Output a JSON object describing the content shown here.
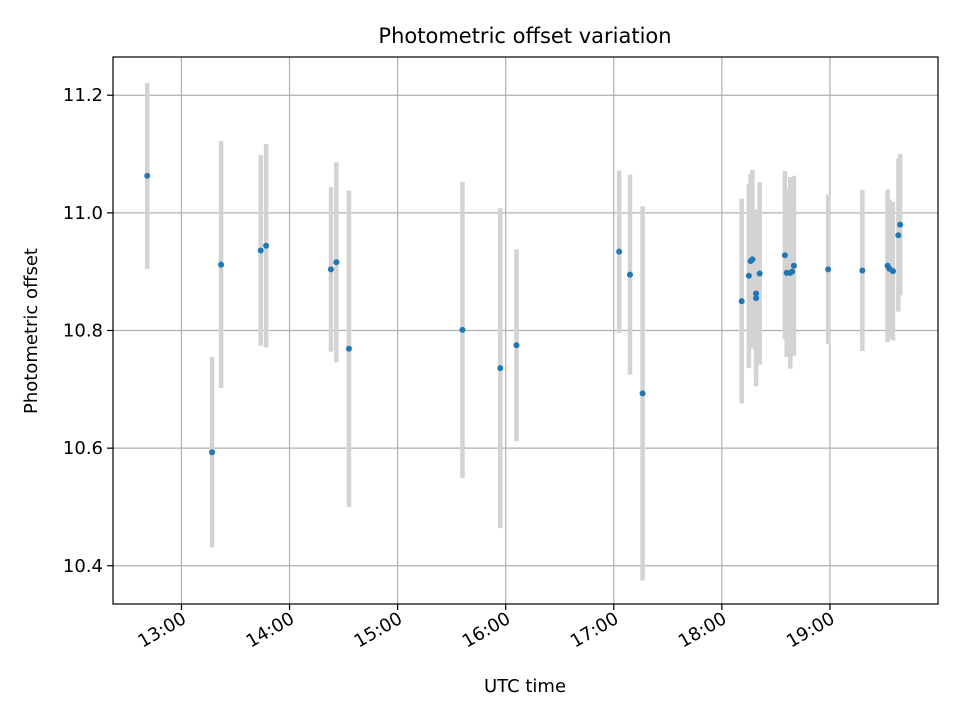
{
  "chart_data": {
    "type": "scatter",
    "title": "Photometric offset variation",
    "xlabel": "UTC time",
    "ylabel": "Photometric offset",
    "x_ticks": [
      "13:00",
      "14:00",
      "15:00",
      "16:00",
      "17:00",
      "18:00",
      "19:00"
    ],
    "y_ticks": [
      "10.4",
      "10.6",
      "10.8",
      "11.0",
      "11.2"
    ],
    "xlim": [
      "12:22",
      "20:00"
    ],
    "ylim": [
      10.335,
      11.265
    ],
    "grid": true,
    "legend": "none",
    "colors": {
      "point": "#1f77b4",
      "errorbar": "#d3d3d3",
      "grid": "#b0b0b0"
    },
    "points": [
      {
        "x": "12:41",
        "y": 11.063,
        "err": 0.158
      },
      {
        "x": "13:17",
        "y": 10.593,
        "err": 0.162
      },
      {
        "x": "13:22",
        "y": 10.912,
        "err": 0.21
      },
      {
        "x": "13:44",
        "y": 10.936,
        "err": 0.162
      },
      {
        "x": "13:47",
        "y": 10.944,
        "err": 0.173
      },
      {
        "x": "14:23",
        "y": 10.904,
        "err": 0.14
      },
      {
        "x": "14:26",
        "y": 10.916,
        "err": 0.17
      },
      {
        "x": "14:33",
        "y": 10.769,
        "err": 0.269
      },
      {
        "x": "15:36",
        "y": 10.801,
        "err": 0.252
      },
      {
        "x": "15:57",
        "y": 10.736,
        "err": 0.272
      },
      {
        "x": "16:06",
        "y": 10.775,
        "err": 0.163
      },
      {
        "x": "17:03",
        "y": 10.934,
        "err": 0.138
      },
      {
        "x": "17:09",
        "y": 10.895,
        "err": 0.17
      },
      {
        "x": "17:16",
        "y": 10.693,
        "err": 0.318
      },
      {
        "x": "18:11",
        "y": 10.85,
        "err": 0.174
      },
      {
        "x": "18:15",
        "y": 10.893,
        "err": 0.157
      },
      {
        "x": "18:16",
        "y": 10.918,
        "err": 0.148
      },
      {
        "x": "18:17",
        "y": 10.921,
        "err": 0.152
      },
      {
        "x": "18:19",
        "y": 10.863,
        "err": 0.143
      },
      {
        "x": "18:19",
        "y": 10.855,
        "err": 0.15
      },
      {
        "x": "18:21",
        "y": 10.897,
        "err": 0.155
      },
      {
        "x": "18:35",
        "y": 10.928,
        "err": 0.143
      },
      {
        "x": "18:36",
        "y": 10.898,
        "err": 0.143
      },
      {
        "x": "18:38",
        "y": 10.898,
        "err": 0.163
      },
      {
        "x": "18:39",
        "y": 10.9,
        "err": 0.133
      },
      {
        "x": "18:40",
        "y": 10.91,
        "err": 0.153
      },
      {
        "x": "18:59",
        "y": 10.904,
        "err": 0.127
      },
      {
        "x": "19:18",
        "y": 10.902,
        "err": 0.137
      },
      {
        "x": "19:32",
        "y": 10.91,
        "err": 0.13
      },
      {
        "x": "19:33",
        "y": 10.905,
        "err": 0.118
      },
      {
        "x": "19:35",
        "y": 10.901,
        "err": 0.118
      },
      {
        "x": "19:38",
        "y": 10.962,
        "err": 0.13
      },
      {
        "x": "19:39",
        "y": 10.98,
        "err": 0.12
      }
    ]
  }
}
